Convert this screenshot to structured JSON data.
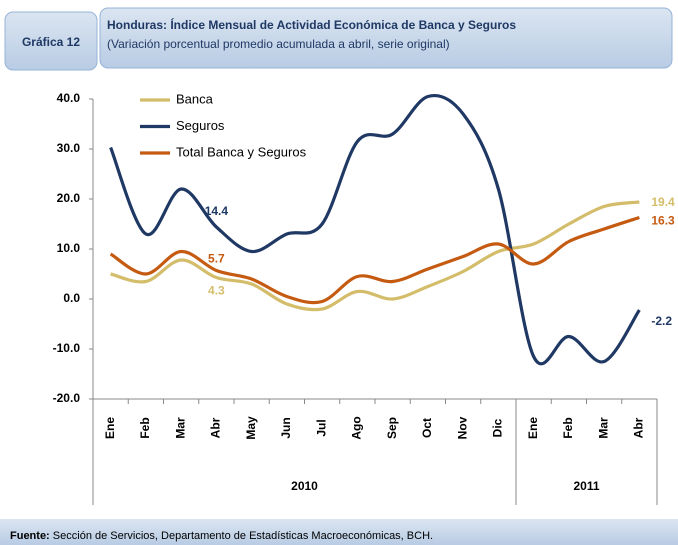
{
  "header": {
    "badge": "Gráfica 12",
    "title": "Honduras: Índice Mensual de Actividad Económica de Banca y Seguros",
    "subtitle": "(Variación porcentual promedio acumulada a abril, serie original)"
  },
  "chart_data": {
    "type": "line",
    "category_groups": [
      {
        "label": "2010",
        "categories": [
          "Ene",
          "Feb",
          "Mar",
          "Abr",
          "May",
          "Jun",
          "Jul",
          "Ago",
          "Sep",
          "Oct",
          "Nov",
          "Dic"
        ]
      },
      {
        "label": "2011",
        "categories": [
          "Ene",
          "Feb",
          "Mar",
          "Abr"
        ]
      }
    ],
    "series": [
      {
        "name": "Banca",
        "color": "#d4bd6a",
        "values": [
          5,
          3.5,
          7.8,
          4.3,
          3,
          -1,
          -2,
          1.5,
          0,
          2.5,
          5.5,
          9.5,
          11,
          15,
          18.5,
          19.4
        ],
        "value_labels": [
          null,
          null,
          null,
          "4.3",
          null,
          null,
          null,
          null,
          null,
          null,
          null,
          null,
          null,
          null,
          null,
          "19.4"
        ]
      },
      {
        "name": "Seguros",
        "color": "#1f3864",
        "values": [
          30.3,
          13,
          22,
          14.4,
          9.5,
          13,
          15,
          31.5,
          33,
          40.5,
          37,
          22,
          -11.5,
          -7.5,
          -12.5,
          -2.2
        ],
        "value_labels": [
          null,
          null,
          null,
          "14.4",
          null,
          null,
          null,
          null,
          null,
          null,
          null,
          null,
          null,
          null,
          null,
          "-2.2"
        ]
      },
      {
        "name": "Total Banca y Seguros",
        "color": "#c55a11",
        "values": [
          9,
          5,
          9.5,
          5.7,
          4,
          0.5,
          -0.5,
          4.5,
          3.5,
          6,
          8.5,
          11,
          7,
          11.5,
          14,
          16.3
        ],
        "value_labels": [
          null,
          null,
          null,
          "5.7",
          null,
          null,
          null,
          null,
          null,
          null,
          null,
          null,
          null,
          null,
          null,
          "16.3"
        ]
      }
    ],
    "ylim": [
      -20,
      40
    ],
    "yticks": [
      {
        "value": 40,
        "label": "40.0"
      },
      {
        "value": 30,
        "label": "30.0"
      },
      {
        "value": 20,
        "label": "20.0"
      },
      {
        "value": 10,
        "label": "10.0"
      },
      {
        "value": 0,
        "label": "0.0"
      },
      {
        "value": -10,
        "label": "-10.0"
      },
      {
        "value": -20,
        "label": "-20.0"
      }
    ],
    "legend": "top-left"
  },
  "footer": {
    "label": "Fuente:",
    "text": "Sección de Servicios, Departamento de Estadísticas Macroeconómicas, BCH."
  }
}
